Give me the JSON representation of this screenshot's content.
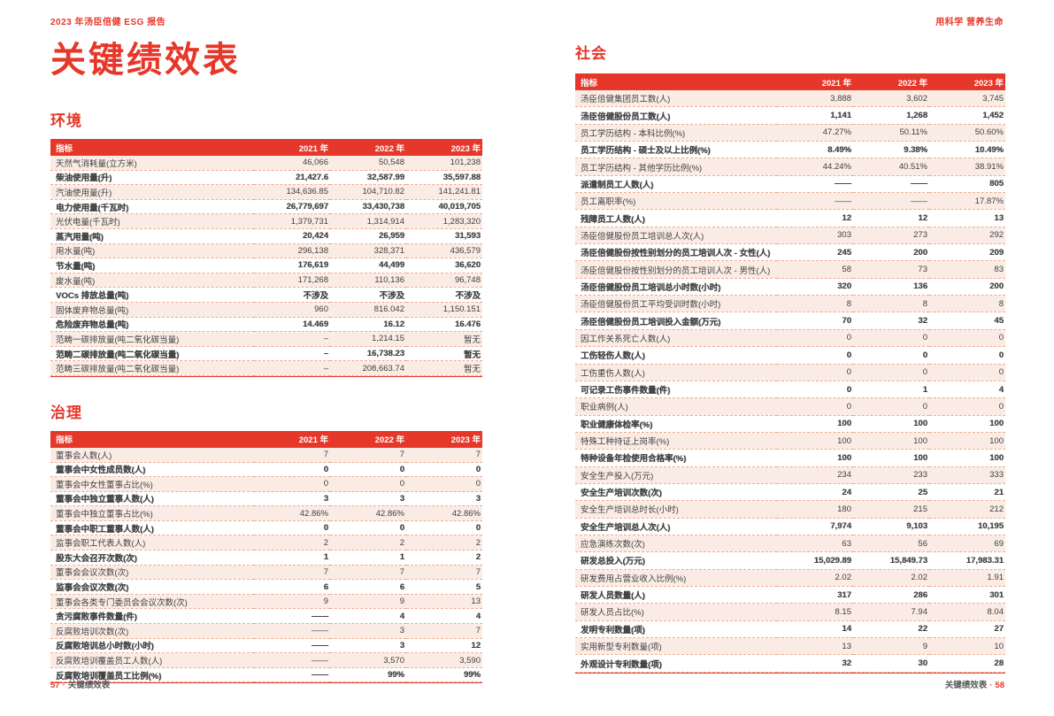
{
  "page": {
    "header_left": "2023 年汤臣倍健 ESG 报告",
    "header_right": "用科学 营养生命",
    "title": "关键绩效表",
    "footer_left": {
      "page_no": "57",
      "dot": "·",
      "label": "关键绩效表"
    },
    "footer_right": {
      "label": "关键绩效表",
      "dot": "·",
      "page_no": "58"
    }
  },
  "colors": {
    "brand_red": "#E6382A",
    "row_pink": "#FAECE4",
    "divider_dash": "#F0A98F",
    "text": "#3F3F3F"
  },
  "tables": [
    {
      "section": "环境",
      "headers": [
        "指标",
        "2021 年",
        "2022 年",
        "2023 年"
      ],
      "rows": [
        [
          "天然气消耗量(立方米)",
          "46,066",
          "50,548",
          "101,238"
        ],
        [
          "柴油使用量(升)",
          "21,427.6",
          "32,587.99",
          "35,597.88"
        ],
        [
          "汽油使用量(升)",
          "134,636.85",
          "104,710.82",
          "141,241.81"
        ],
        [
          "电力使用量(千瓦时)",
          "26,779,697",
          "33,430,738",
          "40,019,705"
        ],
        [
          "光伏电量(千瓦时)",
          "1,379,731",
          "1,314,914",
          "1,283,320"
        ],
        [
          "蒸汽用量(吨)",
          "20,424",
          "26,959",
          "31,593"
        ],
        [
          "用水量(吨)",
          "296,138",
          "328,371",
          "436,579"
        ],
        [
          "节水量(吨)",
          "176,619",
          "44,499",
          "36,620"
        ],
        [
          "废水量(吨)",
          "171,268",
          "110,136",
          "96,748"
        ],
        [
          "VOCs 排放总量(吨)",
          "不涉及",
          "不涉及",
          "不涉及"
        ],
        [
          "固体废弃物总量(吨)",
          "960",
          "816.042",
          "1,150.151"
        ],
        [
          "危险废弃物总量(吨)",
          "14.469",
          "16.12",
          "16.476"
        ],
        [
          "范畴一碳排放量(吨二氧化碳当量)",
          "–",
          "1,214.15",
          "暂无"
        ],
        [
          "范畴二碳排放量(吨二氧化碳当量)",
          "–",
          "16,738.23",
          "暂无"
        ],
        [
          "范畴三碳排放量(吨二氧化碳当量)",
          "–",
          "208,663.74",
          "暂无"
        ]
      ]
    },
    {
      "section": "治理",
      "headers": [
        "指标",
        "2021 年",
        "2022 年",
        "2023 年"
      ],
      "rows": [
        [
          "董事会人数(人)",
          "7",
          "7",
          "7"
        ],
        [
          "董事会中女性成员数(人)",
          "0",
          "0",
          "0"
        ],
        [
          "董事会中女性董事占比(%)",
          "0",
          "0",
          "0"
        ],
        [
          "董事会中独立董事人数(人)",
          "3",
          "3",
          "3"
        ],
        [
          "董事会中独立董事占比(%)",
          "42.86%",
          "42.86%",
          "42.86%"
        ],
        [
          "董事会中职工董事人数(人)",
          "0",
          "0",
          "0"
        ],
        [
          "监事会职工代表人数(人)",
          "2",
          "2",
          "2"
        ],
        [
          "股东大会召开次数(次)",
          "1",
          "1",
          "2"
        ],
        [
          "董事会会议次数(次)",
          "7",
          "7",
          "7"
        ],
        [
          "监事会会议次数(次)",
          "6",
          "6",
          "5"
        ],
        [
          "董事会各类专门委员会会议次数(次)",
          "9",
          "9",
          "13"
        ],
        [
          "贪污腐败事件数量(件)",
          "——",
          "4",
          "4"
        ],
        [
          "反腐败培训次数(次)",
          "——",
          "3",
          "7"
        ],
        [
          "反腐败培训总小时数(小时)",
          "——",
          "3",
          "12"
        ],
        [
          "反腐败培训覆盖员工人数(人)",
          "——",
          "3,570",
          "3,590"
        ],
        [
          "反腐败培训覆盖员工比例(%)",
          "——",
          "99%",
          "99%"
        ]
      ]
    },
    {
      "section": "社会",
      "headers": [
        "指标",
        "2021 年",
        "2022 年",
        "2023 年"
      ],
      "rows": [
        [
          "汤臣倍健集团员工数(人)",
          "3,888",
          "3,602",
          "3,745"
        ],
        [
          "汤臣倍健股份员工数(人)",
          "1,141",
          "1,268",
          "1,452"
        ],
        [
          "员工学历结构 - 本科比例(%)",
          "47.27%",
          "50.11%",
          "50.60%"
        ],
        [
          "员工学历结构 - 硕士及以上比例(%)",
          "8.49%",
          "9.38%",
          "10.49%"
        ],
        [
          "员工学历结构 - 其他学历比例(%)",
          "44.24%",
          "40.51%",
          "38.91%"
        ],
        [
          "派遣制员工人数(人)",
          "——",
          "——",
          "805"
        ],
        [
          "员工离职率(%)",
          "——",
          "——",
          "17.87%"
        ],
        [
          "残障员工人数(人)",
          "12",
          "12",
          "13"
        ],
        [
          "汤臣倍健股份员工培训总人次(人)",
          "303",
          "273",
          "292"
        ],
        [
          "汤臣倍健股份按性别划分的员工培训人次 - 女性(人)",
          "245",
          "200",
          "209"
        ],
        [
          "汤臣倍健股份按性别划分的员工培训人次 - 男性(人)",
          "58",
          "73",
          "83"
        ],
        [
          "汤臣倍健股份员工培训总小时数(小时)",
          "320",
          "136",
          "200"
        ],
        [
          "汤臣倍健股份员工平均受训时数(小时)",
          "8",
          "8",
          "8"
        ],
        [
          "汤臣倍健股份员工培训投入金额(万元)",
          "70",
          "32",
          "45"
        ],
        [
          "因工作关系死亡人数(人)",
          "0",
          "0",
          "0"
        ],
        [
          "工伤轻伤人数(人)",
          "0",
          "0",
          "0"
        ],
        [
          "工伤重伤人数(人)",
          "0",
          "0",
          "0"
        ],
        [
          "可记录工伤事件数量(件)",
          "0",
          "1",
          "4"
        ],
        [
          "职业病例(人)",
          "0",
          "0",
          "0"
        ],
        [
          "职业健康体检率(%)",
          "100",
          "100",
          "100"
        ],
        [
          "特殊工种持证上岗率(%)",
          "100",
          "100",
          "100"
        ],
        [
          "特种设备年检使用合格率(%)",
          "100",
          "100",
          "100"
        ],
        [
          "安全生产投入(万元)",
          "234",
          "233",
          "333"
        ],
        [
          "安全生产培训次数(次)",
          "24",
          "25",
          "21"
        ],
        [
          "安全生产培训总时长(小时)",
          "180",
          "215",
          "212"
        ],
        [
          "安全生产培训总人次(人)",
          "7,974",
          "9,103",
          "10,195"
        ],
        [
          "应急演练次数(次)",
          "63",
          "56",
          "69"
        ],
        [
          "研发总投入(万元)",
          "15,029.89",
          "15,849.73",
          "17,983.31"
        ],
        [
          "研发费用占营业收入比例(%)",
          "2.02",
          "2.02",
          "1.91"
        ],
        [
          "研发人员数量(人)",
          "317",
          "286",
          "301"
        ],
        [
          "研发人员占比(%)",
          "8.15",
          "7.94",
          "8.04"
        ],
        [
          "发明专利数量(项)",
          "14",
          "22",
          "27"
        ],
        [
          "实用新型专利数量(项)",
          "13",
          "9",
          "10"
        ],
        [
          "外观设计专利数量(项)",
          "32",
          "30",
          "28"
        ]
      ]
    }
  ]
}
